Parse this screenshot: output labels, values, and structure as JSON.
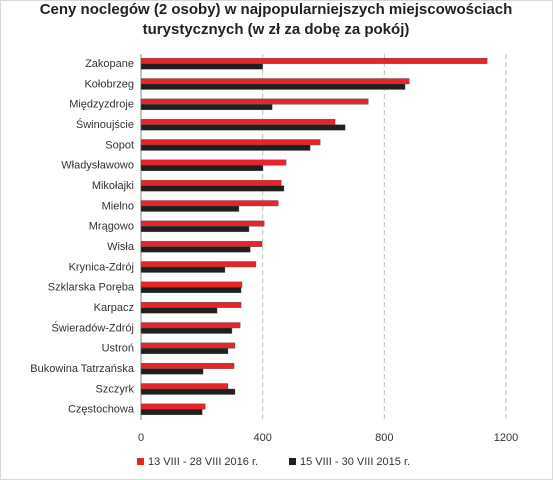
{
  "chart_data": {
    "type": "hbar",
    "title": [
      "Ceny noclegów (2 osoby) w najpopularniejszych miejscowościach",
      "turystycznych (w zł za dobę za pokój)"
    ],
    "categories": [
      "Zakopane",
      "Kołobrzeg",
      "Międzyzdroje",
      "Świnoujście",
      "Sopot",
      "Władysławowo",
      "Mikołajki",
      "Mielno",
      "Mrągowo",
      "Wisła",
      "Krynica-Zdrój",
      "Szklarska Poręba",
      "Karpacz",
      "Świeradów-Zdrój",
      "Ustroń",
      "Bukowina Tatrzańska",
      "Szczyrk",
      "Częstochowa"
    ],
    "series": [
      {
        "name": "13 VIII - 28 VIII 2016 r.",
        "color": "#e8242b",
        "values": [
          1138,
          882,
          747,
          638,
          589,
          477,
          461,
          451,
          405,
          398,
          378,
          332,
          329,
          326,
          309,
          306,
          286,
          211
        ]
      },
      {
        "name": "15 VIII - 30 VIII 2015 r.",
        "color": "#1f1f1f",
        "values": [
          400,
          868,
          431,
          671,
          556,
          401,
          470,
          322,
          355,
          359,
          276,
          329,
          250,
          299,
          286,
          204,
          309,
          201
        ]
      }
    ],
    "xlim": [
      0,
      1200
    ],
    "xticks": [
      0,
      400,
      800,
      1200
    ],
    "grid": true,
    "legend": "bottom"
  }
}
